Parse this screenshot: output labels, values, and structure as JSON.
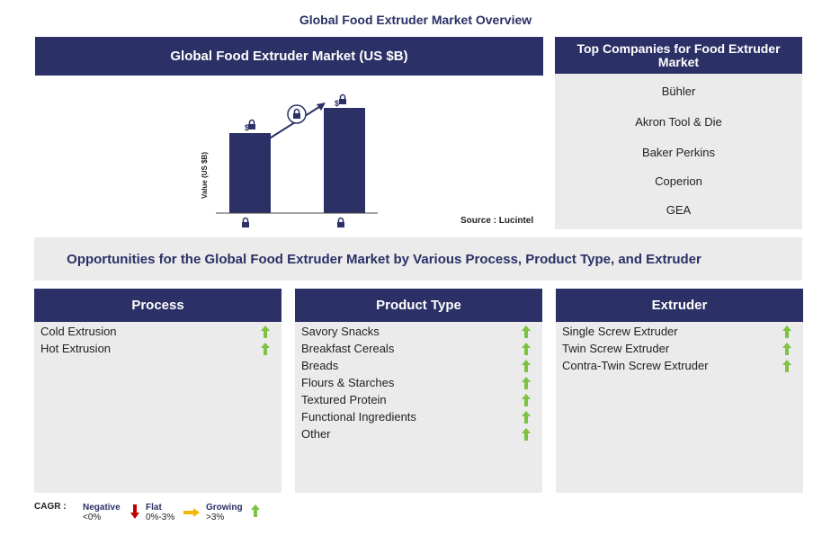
{
  "title": "Global Food Extruder Market Overview",
  "market_panel": {
    "title": "Global Food Extruder Market (US $B)",
    "y_label": "Value (US $B)",
    "bar_labels": [
      "$",
      "$"
    ],
    "source": "Source : Lucintel"
  },
  "companies": {
    "title": "Top Companies for Food Extruder Market",
    "items": [
      "Bühler",
      "Akron Tool & Die",
      "Baker Perkins",
      "Coperion",
      "GEA"
    ]
  },
  "opportunities": {
    "title": "Opportunities for the Global Food Extruder Market by Various Process, Product Type, and Extruder"
  },
  "segments": [
    {
      "title": "Process",
      "items": [
        "Cold Extrusion",
        "Hot Extrusion"
      ]
    },
    {
      "title": "Product Type",
      "items": [
        "Savory Snacks",
        "Breakfast Cereals",
        "Breads",
        "Flours & Starches",
        "Textured Protein",
        "Functional Ingredients",
        "Other"
      ]
    },
    {
      "title": "Extruder",
      "items": [
        "Single Screw Extruder",
        "Twin Screw Extruder",
        "Contra-Twin Screw Extruder"
      ]
    }
  ],
  "legend": {
    "label": "CAGR :",
    "items": [
      {
        "name": "Negative",
        "range": "<0%"
      },
      {
        "name": "Flat",
        "range": "0%-3%"
      },
      {
        "name": "Growing",
        "range": ">3%"
      }
    ]
  }
}
